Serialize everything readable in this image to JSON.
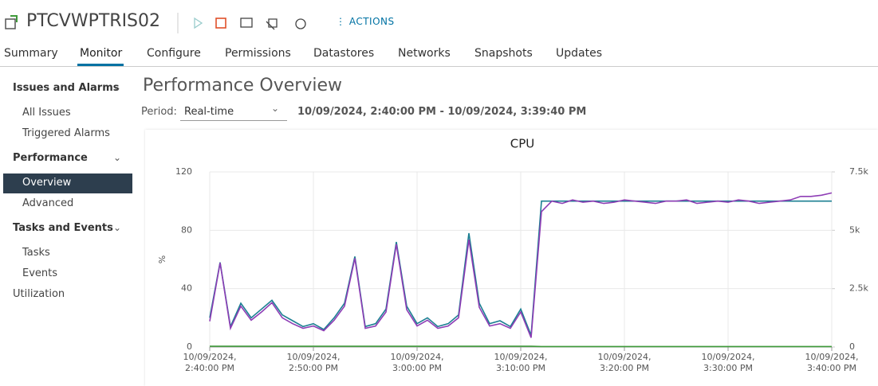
{
  "header": {
    "title": "PTCVWPTRIS02",
    "actions": "ACTIONS"
  },
  "tabs": [
    "Summary",
    "Monitor",
    "Configure",
    "Permissions",
    "Datastores",
    "Networks",
    "Snapshots",
    "Updates"
  ],
  "sidebar": [
    "Issues and Alarms",
    "All Issues",
    "Triggered Alarms",
    "Performance",
    "Overview",
    "Advanced",
    "Tasks and Events",
    "Tasks",
    "Events",
    "Utilization"
  ],
  "content": {
    "title": "Performance Overview",
    "period_label": "Period:",
    "period_value": "Real-time",
    "range": "10/09/2024, 2:40:00 PM - 10/09/2024, 3:39:40 PM"
  },
  "chart_data": {
    "type": "line",
    "title": "CPU",
    "ylabel": "%",
    "grid": true,
    "xlim": [
      0,
      60
    ],
    "xticks": [
      {
        "value": 0,
        "label": [
          "10/09/2024,",
          "2:40:00 PM"
        ]
      },
      {
        "value": 10,
        "label": [
          "10/09/2024,",
          "2:50:00 PM"
        ]
      },
      {
        "value": 20,
        "label": [
          "10/09/2024,",
          "3:00:00 PM"
        ]
      },
      {
        "value": 30,
        "label": [
          "10/09/2024,",
          "3:10:00 PM"
        ]
      },
      {
        "value": 40,
        "label": [
          "10/09/2024,",
          "3:20:00 PM"
        ]
      },
      {
        "value": 50,
        "label": [
          "10/09/2024,",
          "3:30:00 PM"
        ]
      },
      {
        "value": 60,
        "label": [
          "10/09/2024,",
          "3:40:00 PM"
        ]
      }
    ],
    "ylim": [
      0,
      120
    ],
    "yticks": [
      0,
      40,
      80,
      120
    ],
    "y2lim": [
      0,
      7500
    ],
    "y2ticks": [
      0,
      {
        "value": 2500,
        "label": "2.5k"
      },
      {
        "value": 5000,
        "label": "5k"
      },
      {
        "value": 7500,
        "label": "7.5k"
      }
    ],
    "series": [
      {
        "color": "#1b7f92",
        "values": [
          20,
          58,
          14,
          30,
          20,
          26,
          32,
          22,
          18,
          14,
          16,
          12,
          20,
          30,
          62,
          14,
          16,
          26,
          72,
          28,
          16,
          20,
          14,
          16,
          22,
          78,
          30,
          16,
          18,
          14,
          26,
          8,
          100,
          100,
          100,
          100,
          100,
          100,
          100,
          100,
          100,
          100,
          100,
          100,
          100,
          100,
          100,
          100,
          100,
          100,
          100,
          100,
          100,
          100,
          100,
          100,
          100,
          100,
          100,
          100,
          100
        ]
      },
      {
        "color": "#8e3db5",
        "axis": "y2",
        "values": [
          1100,
          3600,
          800,
          1750,
          1150,
          1500,
          1900,
          1250,
          1000,
          800,
          900,
          700,
          1150,
          1750,
          3800,
          800,
          900,
          1500,
          4400,
          1600,
          900,
          1150,
          800,
          900,
          1250,
          4600,
          1700,
          900,
          1000,
          800,
          1500,
          400,
          5800,
          6250,
          6150,
          6300,
          6200,
          6250,
          6150,
          6200,
          6300,
          6250,
          6200,
          6150,
          6250,
          6250,
          6300,
          6150,
          6200,
          6250,
          6200,
          6300,
          6250,
          6150,
          6200,
          6250,
          6300,
          6450,
          6450,
          6500,
          6600
        ]
      },
      {
        "color": "#3f9a3a",
        "values": [
          0.5,
          0.5,
          0.5,
          0.5,
          0.5,
          0.5,
          0.5,
          0.5,
          0.5,
          0.5,
          0.5,
          0.5,
          0.5,
          0.5,
          0.5,
          0.5,
          0.5,
          0.5,
          0.5,
          0.5,
          0.5,
          0.5,
          0.5,
          0.5,
          0.5,
          0.5,
          0.5,
          0.5,
          0.5,
          0.5,
          0.5,
          0.5,
          0.3,
          0.3,
          0.3,
          0.3,
          0.3,
          0.3,
          0.3,
          0.3,
          0.3,
          0.3,
          0.3,
          0.3,
          0.3,
          0.3,
          0.3,
          0.3,
          0.3,
          0.3,
          0.3,
          0.3,
          0.3,
          0.3,
          0.3,
          0.3,
          0.3,
          0.3,
          0.3,
          0.3,
          0.3
        ]
      }
    ]
  }
}
